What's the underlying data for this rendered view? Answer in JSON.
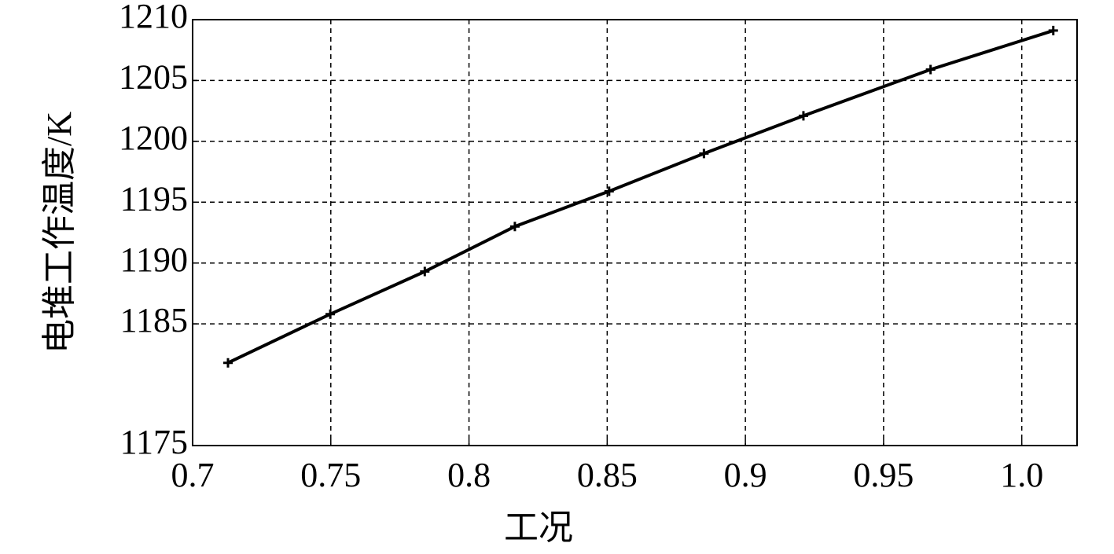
{
  "chart_data": {
    "type": "line",
    "x_label": "工况",
    "y_label": "电堆工作温度/K",
    "x": [
      0.7128,
      0.7498,
      0.784,
      0.8166,
      0.8507,
      0.885,
      0.921,
      0.967,
      1.0114
    ],
    "series": [
      {
        "color": "#000000",
        "values": [
          1181.8,
          1185.8,
          1189.3,
          1193.0,
          1195.9,
          1199.0,
          1202.1,
          1205.9,
          1209.1
        ]
      }
    ],
    "xlim": [
      0.7,
      1.02
    ],
    "xticks": [
      0.7,
      0.75,
      0.8,
      0.85,
      0.9,
      0.95,
      {
        "value": 1,
        "label": "1.0"
      }
    ],
    "ylim": [
      1175,
      1210
    ],
    "yticks": [
      1175,
      1185,
      1190,
      1195,
      1200,
      1205,
      1210
    ],
    "grid": true
  }
}
